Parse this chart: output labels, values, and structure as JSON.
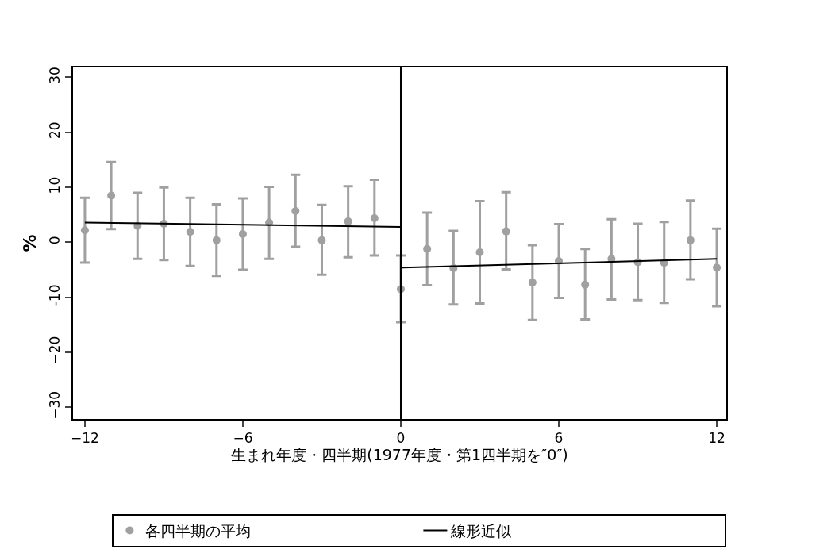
{
  "chart_data": {
    "type": "scatter",
    "xlabel": "生まれ年度・四半期(1977年度・第1四半期を″0″)",
    "ylabel": "%",
    "xlim": [
      -12.45,
      12.36
    ],
    "xticks": [
      {
        "value": -12,
        "label": "−12"
      },
      {
        "value": -6,
        "label": "−6"
      },
      0,
      6,
      12
    ],
    "ylim": [
      -32.1,
      31.8
    ],
    "yticks": [
      {
        "value": -30,
        "label": "−30"
      },
      {
        "value": -20,
        "label": "−20"
      },
      {
        "value": -10,
        "label": "-10"
      },
      0,
      10,
      20,
      30
    ],
    "grid": false,
    "legend": "bottom",
    "marker": "circle",
    "ref_lines": [
      {
        "axis": "x",
        "value": 0,
        "color": "#000000",
        "line_style": "solid"
      }
    ],
    "series": [
      {
        "name": "各四半期の平均",
        "color": "#a0a0a0",
        "x": [
          -12,
          -11,
          -10,
          -9,
          -8,
          -7,
          -6,
          -5,
          -4,
          -3,
          -2,
          -1,
          0,
          1,
          2,
          3,
          4,
          5,
          6,
          7,
          8,
          9,
          10,
          11,
          12
        ],
        "values": [
          2.2,
          8.5,
          3.0,
          3.4,
          1.9,
          0.4,
          1.5,
          3.6,
          5.7,
          0.4,
          3.8,
          4.4,
          -8.5,
          -1.2,
          -4.7,
          -1.8,
          2.0,
          -7.3,
          -3.4,
          -7.7,
          -3.0,
          -3.6,
          -3.7,
          0.4,
          -4.6
        ],
        "errors": [
          [
            -3.7,
            8.1
          ],
          [
            2.4,
            14.6
          ],
          [
            -3.0,
            9.0
          ],
          [
            -3.2,
            10.0
          ],
          [
            -4.3,
            8.1
          ],
          [
            -6.1,
            6.9
          ],
          [
            -5.0,
            8.0
          ],
          [
            -3.0,
            10.1
          ],
          [
            -0.8,
            12.3
          ],
          [
            -5.9,
            6.8
          ],
          [
            -2.7,
            10.2
          ],
          [
            -2.4,
            11.4
          ],
          [
            -14.5,
            -2.4
          ],
          [
            -7.8,
            5.4
          ],
          [
            -11.3,
            2.1
          ],
          [
            -11.1,
            7.5
          ],
          [
            -4.9,
            9.1
          ],
          [
            -14.1,
            -0.5
          ],
          [
            -10.1,
            3.3
          ],
          [
            -14.0,
            -1.2
          ],
          [
            -10.4,
            4.2
          ],
          [
            -10.5,
            3.4
          ],
          [
            -11.0,
            3.7
          ],
          [
            -6.7,
            7.6
          ],
          [
            -11.6,
            2.5
          ]
        ]
      },
      {
        "name": "線形近似",
        "type": "line",
        "color": "#000000",
        "marker": "none",
        "line_style": "solid",
        "x": [
          -12,
          0
        ],
        "values": [
          3.6,
          2.8
        ]
      },
      {
        "type": "line",
        "color": "#000000",
        "marker": "none",
        "line_style": "solid",
        "x": [
          0,
          12
        ],
        "values": [
          -4.6,
          -3.0
        ]
      }
    ]
  }
}
